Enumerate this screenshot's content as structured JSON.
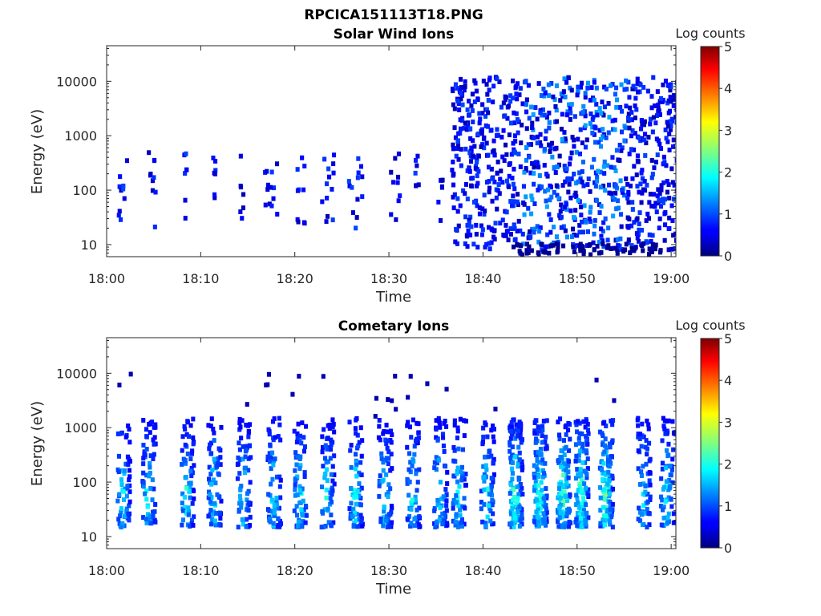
{
  "chart_data": {
    "type": "heatmap",
    "title": "RPCICA151113T18.PNG",
    "panels": [
      {
        "title": "Solar Wind Ions",
        "xlabel": "Time",
        "ylabel": "Energy (eV)",
        "x_ticks": [
          "18:00",
          "18:10",
          "18:20",
          "18:30",
          "18:40",
          "18:50",
          "19:00"
        ],
        "xlim_minutes": [
          0,
          60.5
        ],
        "y_ticks": [
          "10",
          "100",
          "1000",
          "10000"
        ],
        "y_scale": "log",
        "ylim": [
          6,
          45000
        ],
        "colorbar": {
          "label": "Log counts",
          "ticks": [
            "0",
            "1",
            "2",
            "3",
            "4",
            "5"
          ],
          "range": [
            0,
            5
          ],
          "colormap": "jet"
        },
        "activity_profile": {
          "description": "sparse low-count detections, increasing strongly after 18:37",
          "intervals_minutes": [
            [
              1,
              2
            ],
            [
              4,
              5
            ],
            [
              8,
              8.5
            ],
            [
              11,
              11.5
            ],
            [
              14,
              14.5
            ],
            [
              16.5,
              18
            ],
            [
              20,
              21
            ],
            [
              22.5,
              24
            ],
            [
              25.5,
              27
            ],
            [
              30,
              31
            ],
            [
              32.5,
              33
            ],
            [
              35,
              35.5
            ],
            [
              36.5,
              60.5
            ]
          ],
          "typical_energy_ev": [
            20,
            500
          ],
          "max_log_counts": 1.2
        }
      },
      {
        "title": "Cometary Ions",
        "xlabel": "Time",
        "ylabel": "Energy (eV)",
        "x_ticks": [
          "18:00",
          "18:10",
          "18:20",
          "18:30",
          "18:40",
          "18:50",
          "19:00"
        ],
        "xlim_minutes": [
          0,
          60.5
        ],
        "y_ticks": [
          "10",
          "100",
          "1000",
          "10000"
        ],
        "y_scale": "log",
        "ylim": [
          6,
          45000
        ],
        "colorbar": {
          "label": "Log counts",
          "ticks": [
            "0",
            "1",
            "2",
            "3",
            "4",
            "5"
          ],
          "range": [
            0,
            5
          ],
          "colormap": "jet"
        },
        "bursts_minutes": [
          1.5,
          4.2,
          8.3,
          11.2,
          14.3,
          17.5,
          20.3,
          23.2,
          26.2,
          29.3,
          32.3,
          35.2,
          37.2,
          40.2,
          43.2,
          45.8,
          48.3,
          50.2,
          52.8,
          56.8,
          59.3
        ],
        "burst_energy_ev": [
          15,
          1500
        ],
        "peak_energy_ev": 60,
        "max_log_counts": 2.7
      }
    ]
  }
}
